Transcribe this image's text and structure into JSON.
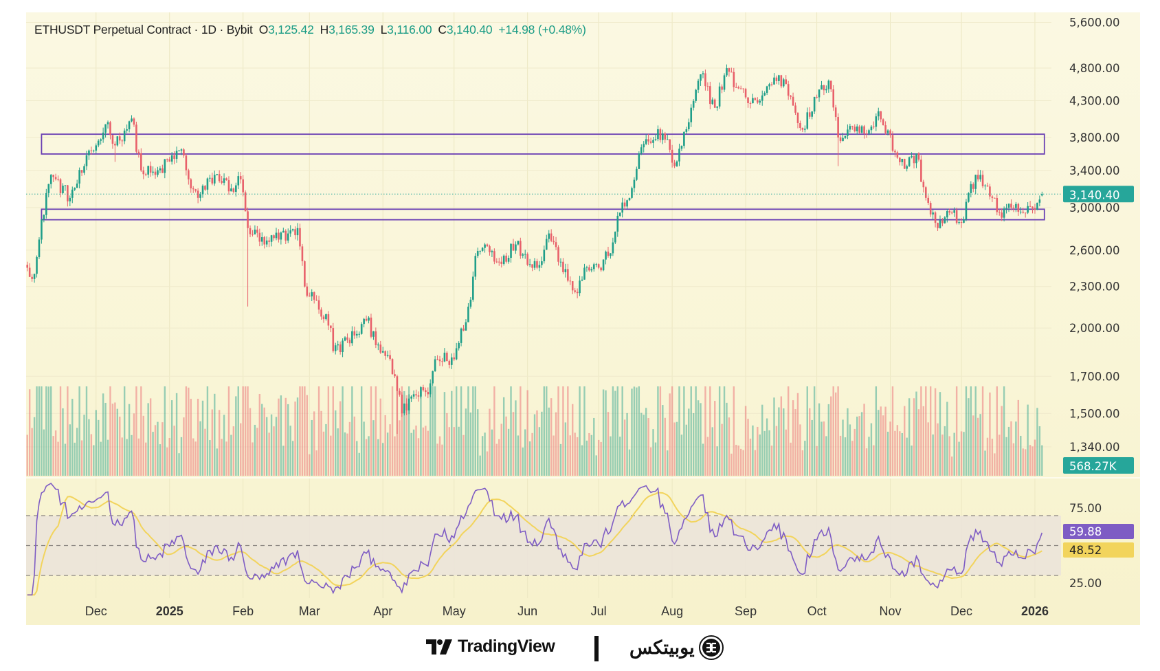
{
  "header": {
    "symbol": "ETHUSDT Perpetual Contract · 1D · Bybit",
    "o_label": "O",
    "o_value": "3,125.42",
    "h_label": "H",
    "h_value": "3,165.39",
    "l_label": "L",
    "l_value": "3,116.00",
    "c_label": "C",
    "c_value": "3,140.40",
    "change": "+14.98 (+0.48%)"
  },
  "colors": {
    "up": "#1f9e89",
    "down": "#e8606a",
    "rsi": "#7e5cc4",
    "rsi_ma": "#f2d45c",
    "zone": "#6a3fb3",
    "accent": "#26a69a"
  },
  "chart_data": {
    "type": "candlestick",
    "title": "ETHUSDT Perpetual Contract · 1D · Bybit",
    "scale": "log",
    "ylim": [
      1340,
      5600
    ],
    "price_ticks": [
      "5,600.00",
      "4,800.00",
      "4,300.00",
      "3,800.00",
      "3,400.00",
      "3,000.00",
      "2,600.00",
      "2,300.00",
      "2,000.00",
      "1,700.00",
      "1,500.00",
      "1,340.00"
    ],
    "price_tick_values": [
      5600,
      4800,
      4300,
      3800,
      3400,
      3000,
      2600,
      2300,
      2000,
      1700,
      1500,
      1340
    ],
    "x_range": [
      "2024-11-02",
      "2026-01-04"
    ],
    "x_ticks": [
      {
        "label": "Dec",
        "date": "2024-12-01",
        "bold": false
      },
      {
        "label": "2025",
        "date": "2025-01-01",
        "bold": true
      },
      {
        "label": "Feb",
        "date": "2025-02-01",
        "bold": false
      },
      {
        "label": "Mar",
        "date": "2025-03-01",
        "bold": false
      },
      {
        "label": "Apr",
        "date": "2025-04-01",
        "bold": false
      },
      {
        "label": "May",
        "date": "2025-05-01",
        "bold": false
      },
      {
        "label": "Jun",
        "date": "2025-06-01",
        "bold": false
      },
      {
        "label": "Jul",
        "date": "2025-07-01",
        "bold": false
      },
      {
        "label": "Aug",
        "date": "2025-08-01",
        "bold": false
      },
      {
        "label": "Sep",
        "date": "2025-09-01",
        "bold": false
      },
      {
        "label": "Oct",
        "date": "2025-10-01",
        "bold": false
      },
      {
        "label": "Nov",
        "date": "2025-11-01",
        "bold": false
      },
      {
        "label": "Dec",
        "date": "2025-12-01",
        "bold": false
      },
      {
        "label": "2026",
        "date": "2026-01-01",
        "bold": true
      }
    ],
    "close_anchors": [
      [
        "2024-11-02",
        2450
      ],
      [
        "2024-11-05",
        2400
      ],
      [
        "2024-11-10",
        3150
      ],
      [
        "2024-11-12",
        3350
      ],
      [
        "2024-11-20",
        3100
      ],
      [
        "2024-11-26",
        3450
      ],
      [
        "2024-12-01",
        3700
      ],
      [
        "2024-12-06",
        4000
      ],
      [
        "2024-12-09",
        3700
      ],
      [
        "2024-12-16",
        4050
      ],
      [
        "2024-12-20",
        3400
      ],
      [
        "2024-12-26",
        3350
      ],
      [
        "2025-01-06",
        3650
      ],
      [
        "2025-01-09",
        3300
      ],
      [
        "2025-01-13",
        3100
      ],
      [
        "2025-01-20",
        3350
      ],
      [
        "2025-01-27",
        3200
      ],
      [
        "2025-01-31",
        3300
      ],
      [
        "2025-02-03",
        2800
      ],
      [
        "2025-02-10",
        2650
      ],
      [
        "2025-02-20",
        2750
      ],
      [
        "2025-02-24",
        2800
      ],
      [
        "2025-02-27",
        2300
      ],
      [
        "2025-03-03",
        2200
      ],
      [
        "2025-03-10",
        2000
      ],
      [
        "2025-03-11",
        1850
      ],
      [
        "2025-03-20",
        1950
      ],
      [
        "2025-03-25",
        2050
      ],
      [
        "2025-04-01",
        1850
      ],
      [
        "2025-04-06",
        1700
      ],
      [
        "2025-04-09",
        1500
      ],
      [
        "2025-04-14",
        1600
      ],
      [
        "2025-04-20",
        1600
      ],
      [
        "2025-04-23",
        1800
      ],
      [
        "2025-05-01",
        1800
      ],
      [
        "2025-05-08",
        2200
      ],
      [
        "2025-05-10",
        2550
      ],
      [
        "2025-05-14",
        2650
      ],
      [
        "2025-05-20",
        2500
      ],
      [
        "2025-05-27",
        2650
      ],
      [
        "2025-06-05",
        2450
      ],
      [
        "2025-06-10",
        2750
      ],
      [
        "2025-06-15",
        2500
      ],
      [
        "2025-06-22",
        2250
      ],
      [
        "2025-06-25",
        2450
      ],
      [
        "2025-07-01",
        2450
      ],
      [
        "2025-07-05",
        2550
      ],
      [
        "2025-07-10",
        2950
      ],
      [
        "2025-07-14",
        3100
      ],
      [
        "2025-07-18",
        3600
      ],
      [
        "2025-07-22",
        3750
      ],
      [
        "2025-07-28",
        3850
      ],
      [
        "2025-08-02",
        3450
      ],
      [
        "2025-08-08",
        4000
      ],
      [
        "2025-08-13",
        4700
      ],
      [
        "2025-08-19",
        4200
      ],
      [
        "2025-08-24",
        4800
      ],
      [
        "2025-08-28",
        4500
      ],
      [
        "2025-09-01",
        4350
      ],
      [
        "2025-09-07",
        4300
      ],
      [
        "2025-09-13",
        4650
      ],
      [
        "2025-09-18",
        4550
      ],
      [
        "2025-09-25",
        3900
      ],
      [
        "2025-10-01",
        4350
      ],
      [
        "2025-10-06",
        4600
      ],
      [
        "2025-10-10",
        3800
      ],
      [
        "2025-10-15",
        3950
      ],
      [
        "2025-10-22",
        3850
      ],
      [
        "2025-10-27",
        4150
      ],
      [
        "2025-11-04",
        3550
      ],
      [
        "2025-11-08",
        3450
      ],
      [
        "2025-11-12",
        3600
      ],
      [
        "2025-11-16",
        3100
      ],
      [
        "2025-11-21",
        2800
      ],
      [
        "2025-11-26",
        2950
      ],
      [
        "2025-12-01",
        2850
      ],
      [
        "2025-12-04",
        3150
      ],
      [
        "2025-12-09",
        3350
      ],
      [
        "2025-12-14",
        3100
      ],
      [
        "2025-12-18",
        2900
      ],
      [
        "2025-12-22",
        3000
      ],
      [
        "2025-12-27",
        2950
      ],
      [
        "2026-01-01",
        2980
      ],
      [
        "2026-01-04",
        3140.4
      ]
    ],
    "long_wicks": [
      [
        "2025-02-03",
        2150
      ],
      [
        "2025-04-07",
        1400
      ],
      [
        "2025-10-10",
        3450
      ],
      [
        "2024-12-09",
        3500
      ]
    ],
    "last_candle": {
      "open": 3125.42,
      "high": 3165.39,
      "low": 3116.0,
      "close": 3140.4,
      "change": 14.98,
      "change_pct": 0.48
    },
    "last_price_label": "3,140.40",
    "zones": [
      {
        "name": "resistance-zone",
        "from": "2024-11-08",
        "to": "2026-01-05",
        "low": 3594,
        "high": 3842
      },
      {
        "name": "support-zone",
        "from": "2024-11-08",
        "to": "2026-01-05",
        "low": 2880,
        "high": 2984
      }
    ],
    "volume": {
      "last_label": "568.27K"
    },
    "rsi": {
      "period": 14,
      "ma_period": 14,
      "ticks": [
        "75.00",
        "25.00"
      ],
      "tick_values": [
        75,
        25
      ],
      "levels": [
        70,
        50,
        30
      ],
      "ylim": [
        17,
        95
      ],
      "last_value_label": "59.88",
      "ma_last_label": "48.52"
    }
  },
  "footer": {
    "tradingview": "TradingView",
    "partner": "یوبیتکس"
  }
}
